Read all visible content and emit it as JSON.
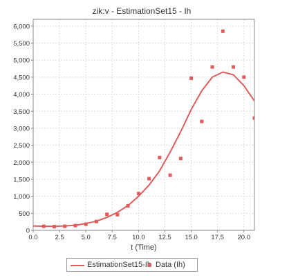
{
  "chart_data": {
    "type": "line",
    "title": "zik:v - EstimationSet15 - Ih",
    "xlabel": "t (Time)",
    "ylabel": "",
    "xlim": [
      0,
      21
    ],
    "ylim": [
      0,
      6200
    ],
    "x_ticks": [
      "0.0",
      "2.5",
      "5.0",
      "7.5",
      "10.0",
      "12.5",
      "15.0",
      "17.5",
      "20.0"
    ],
    "x_tick_values": [
      0,
      2.5,
      5,
      7.5,
      10,
      12.5,
      15,
      17.5,
      20
    ],
    "y_ticks": [
      "0",
      "500",
      "1,000",
      "1,500",
      "2,000",
      "2,500",
      "3,000",
      "3,500",
      "4,000",
      "4,500",
      "5,000",
      "5,500",
      "6,000"
    ],
    "y_tick_values": [
      0,
      500,
      1000,
      1500,
      2000,
      2500,
      3000,
      3500,
      4000,
      4500,
      5000,
      5500,
      6000
    ],
    "grid": true,
    "legend_position": "bottom",
    "series": [
      {
        "name": "EstimationSet15-Ih",
        "kind": "line",
        "color": "#e05c5c",
        "x": [
          0,
          1,
          2,
          3,
          4,
          5,
          6,
          7,
          8,
          9,
          10,
          11,
          12,
          13,
          14,
          15,
          16,
          17,
          18,
          19,
          20,
          21
        ],
        "y": [
          130,
          120,
          120,
          130,
          150,
          200,
          270,
          380,
          530,
          730,
          1000,
          1330,
          1750,
          2300,
          2900,
          3550,
          4100,
          4500,
          4650,
          4570,
          4250,
          3800
        ]
      },
      {
        "name": "Data (Ih)",
        "kind": "scatter",
        "color": "#e05c5c",
        "x": [
          1,
          2,
          3,
          4,
          5,
          6,
          7,
          8,
          9,
          10,
          11,
          12,
          13,
          14,
          15,
          16,
          17,
          18,
          19,
          20,
          21
        ],
        "y": [
          120,
          110,
          120,
          140,
          180,
          260,
          470,
          460,
          720,
          1080,
          1520,
          2140,
          1620,
          2110,
          4470,
          3200,
          4800,
          5850,
          4800,
          4500,
          3300
        ]
      }
    ]
  }
}
